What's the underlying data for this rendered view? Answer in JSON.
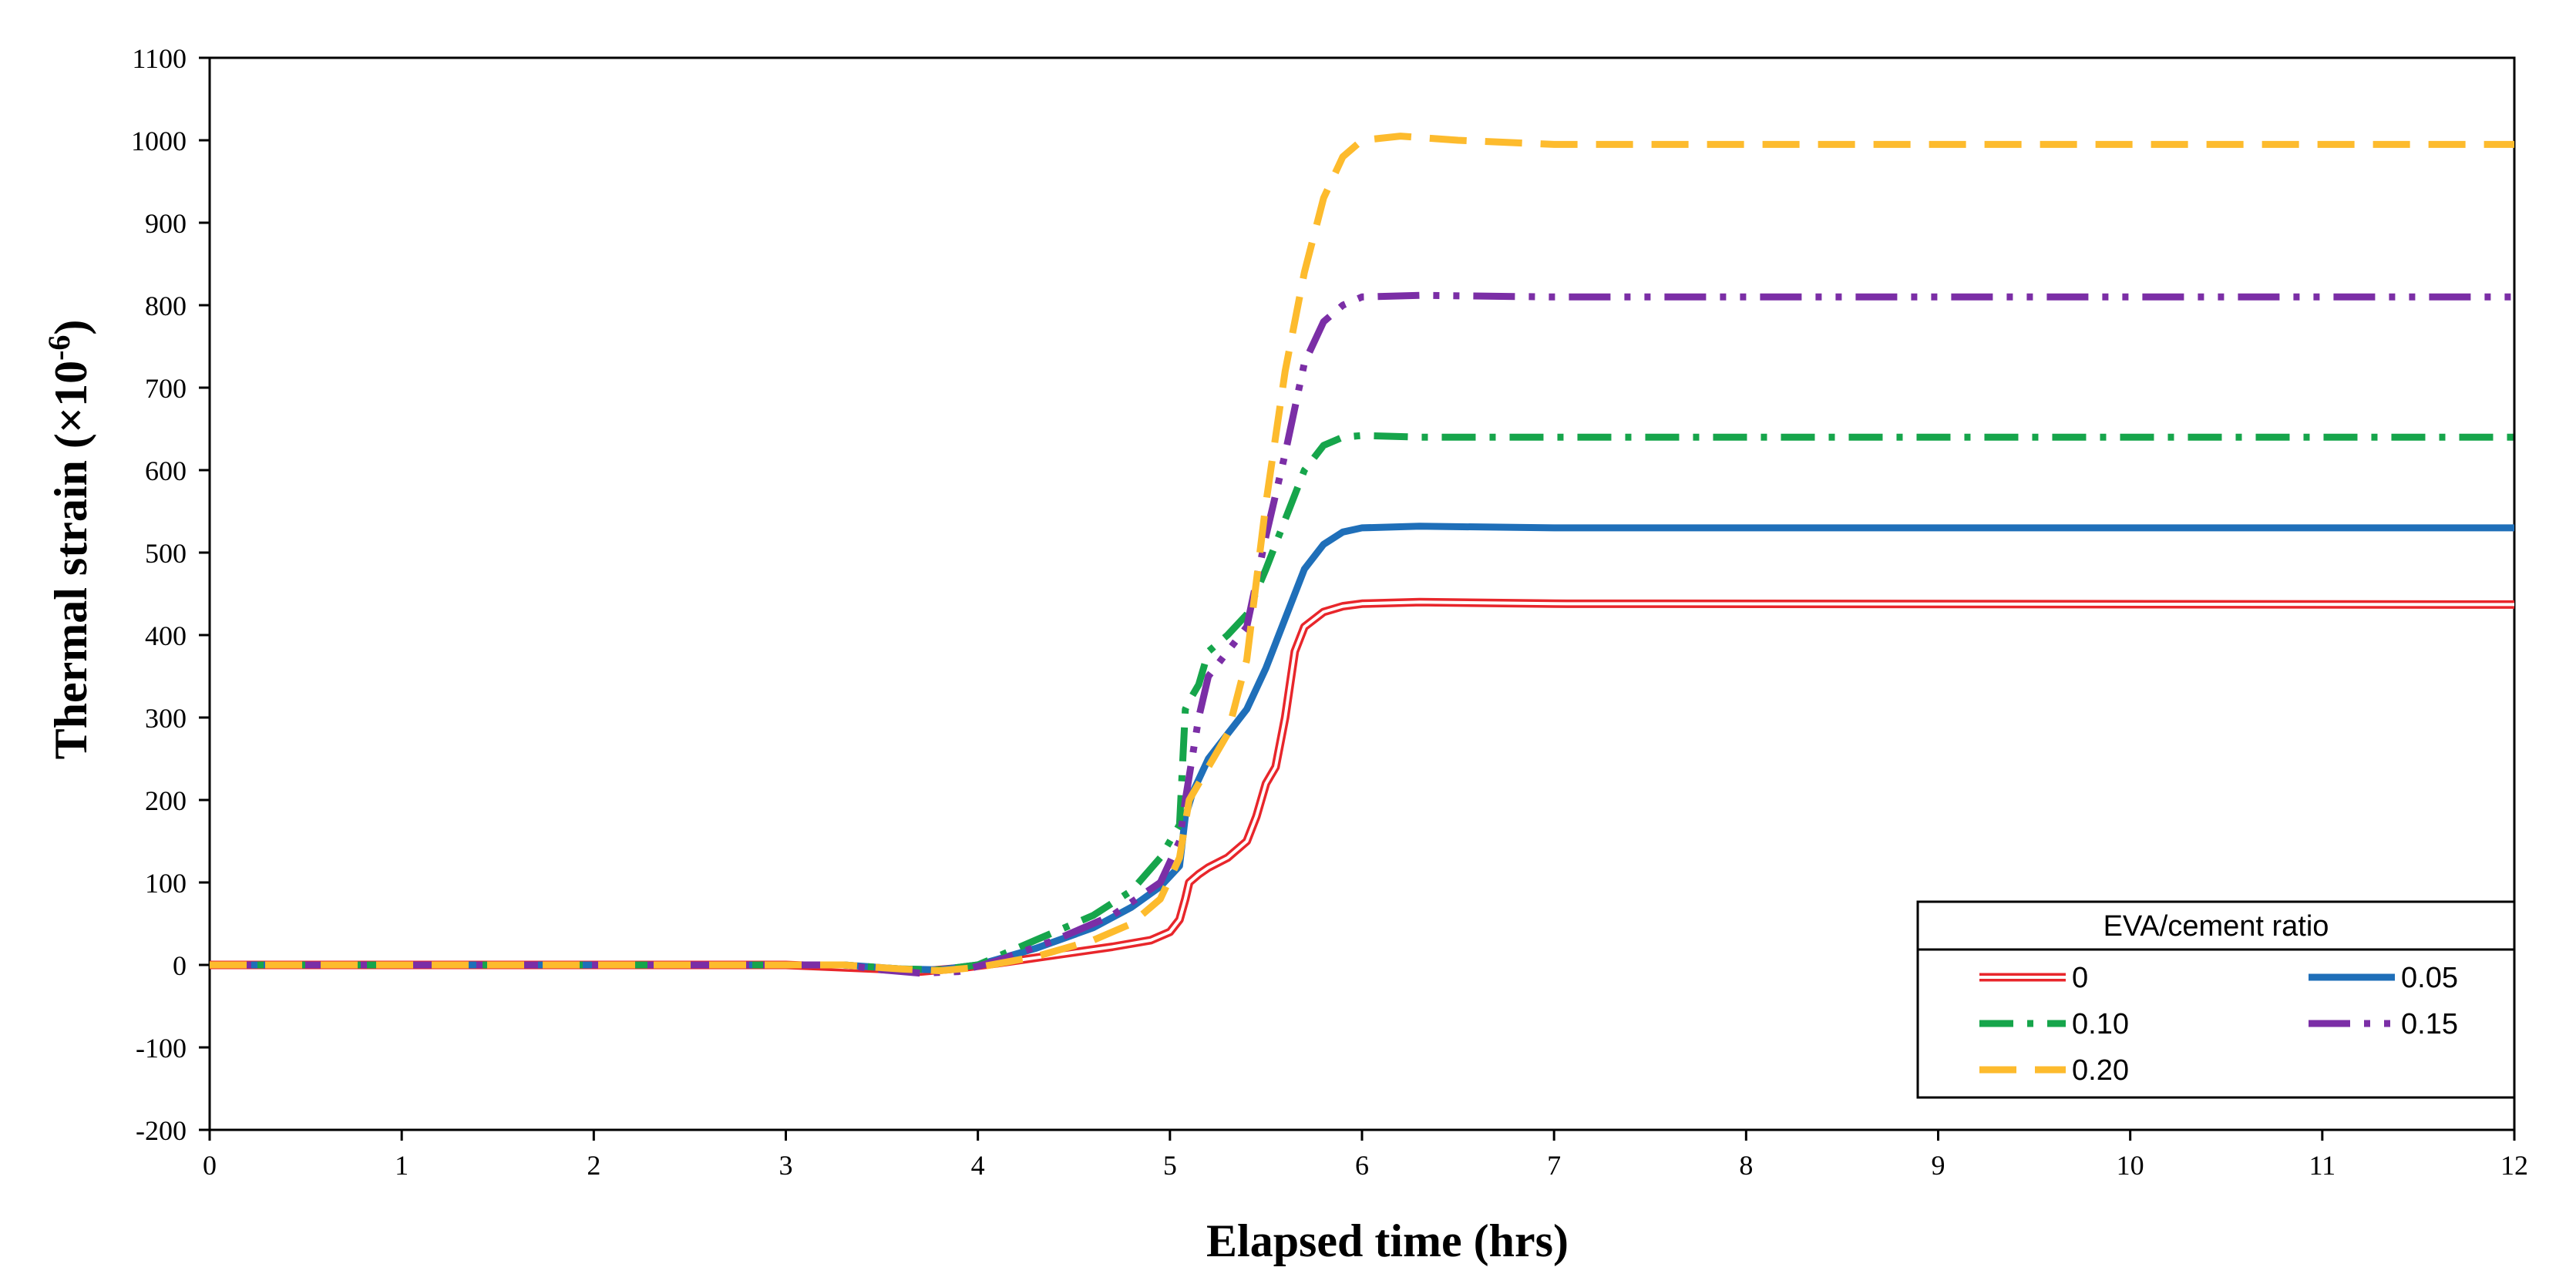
{
  "chart_data": {
    "type": "line",
    "title": "",
    "xlabel": "Elapsed time (hrs)",
    "ylabel_main": "Thermal strain (×10",
    "ylabel_sup": "-6",
    "ylabel_close": ")",
    "xlim": [
      0,
      12
    ],
    "ylim": [
      -200,
      1100
    ],
    "xticks": [
      0,
      1,
      2,
      3,
      4,
      5,
      6,
      7,
      8,
      9,
      10,
      11,
      12
    ],
    "yticks": [
      -200,
      -100,
      0,
      100,
      200,
      300,
      400,
      500,
      600,
      700,
      800,
      900,
      1000,
      1100
    ],
    "grid": false,
    "legend": {
      "title": "EVA/cement  ratio",
      "position": "bottom-right"
    },
    "series": [
      {
        "name": "0",
        "color": "#e8262b",
        "style": "double",
        "x": [
          0,
          3,
          3.5,
          3.7,
          3.9,
          4.1,
          4.4,
          4.7,
          4.9,
          5.0,
          5.05,
          5.08,
          5.1,
          5.15,
          5.2,
          5.3,
          5.4,
          5.45,
          5.5,
          5.55,
          5.6,
          5.65,
          5.7,
          5.8,
          5.9,
          6.0,
          6.3,
          7,
          12
        ],
        "y": [
          0,
          0,
          -5,
          -8,
          -4,
          2,
          12,
          22,
          30,
          40,
          55,
          80,
          100,
          110,
          118,
          130,
          150,
          180,
          220,
          240,
          300,
          380,
          410,
          428,
          435,
          438,
          440,
          438,
          437
        ]
      },
      {
        "name": "0.05",
        "color": "#1f6fb9",
        "style": "solid",
        "x": [
          0,
          3.3,
          3.6,
          3.8,
          4.0,
          4.3,
          4.6,
          4.8,
          4.95,
          5.05,
          5.08,
          5.12,
          5.2,
          5.3,
          5.4,
          5.5,
          5.6,
          5.7,
          5.8,
          5.9,
          6.0,
          6.3,
          7,
          12
        ],
        "y": [
          0,
          0,
          -5,
          -6,
          0,
          20,
          45,
          70,
          95,
          120,
          180,
          210,
          250,
          280,
          310,
          360,
          420,
          480,
          510,
          525,
          530,
          532,
          530,
          530
        ]
      },
      {
        "name": "0.10",
        "color": "#16a54b",
        "style": "dashdot",
        "x": [
          0,
          3.3,
          3.6,
          3.8,
          4.0,
          4.3,
          4.6,
          4.8,
          4.95,
          5.05,
          5.08,
          5.1,
          5.15,
          5.2,
          5.3,
          5.4,
          5.5,
          5.6,
          5.7,
          5.8,
          5.9,
          6.0,
          6.3,
          7,
          12
        ],
        "y": [
          0,
          0,
          -5,
          -6,
          0,
          30,
          60,
          90,
          130,
          170,
          310,
          320,
          340,
          380,
          400,
          425,
          480,
          540,
          600,
          630,
          640,
          642,
          640,
          640,
          640
        ]
      },
      {
        "name": "0.15",
        "color": "#7b2ea6",
        "style": "dashdotdot",
        "x": [
          0,
          3.3,
          3.5,
          3.7,
          3.9,
          4.1,
          4.4,
          4.7,
          4.95,
          5.05,
          5.08,
          5.15,
          5.2,
          5.3,
          5.4,
          5.5,
          5.6,
          5.7,
          5.8,
          5.9,
          6.0,
          6.3,
          7,
          12
        ],
        "y": [
          0,
          0,
          -6,
          -10,
          -8,
          5,
          30,
          60,
          100,
          150,
          200,
          300,
          350,
          380,
          410,
          520,
          620,
          730,
          780,
          800,
          810,
          812,
          810,
          810
        ]
      },
      {
        "name": "0.20",
        "color": "#fdbb2d",
        "style": "dash",
        "x": [
          0,
          3.3,
          3.6,
          3.8,
          4.0,
          4.3,
          4.6,
          4.8,
          4.95,
          5.05,
          5.1,
          5.2,
          5.3,
          5.4,
          5.5,
          5.6,
          5.7,
          5.8,
          5.9,
          6.0,
          6.2,
          6.5,
          7,
          12
        ],
        "y": [
          0,
          0,
          -5,
          -7,
          -3,
          10,
          30,
          50,
          80,
          130,
          200,
          240,
          280,
          370,
          560,
          720,
          840,
          930,
          980,
          1000,
          1005,
          1000,
          995,
          995
        ]
      }
    ]
  }
}
